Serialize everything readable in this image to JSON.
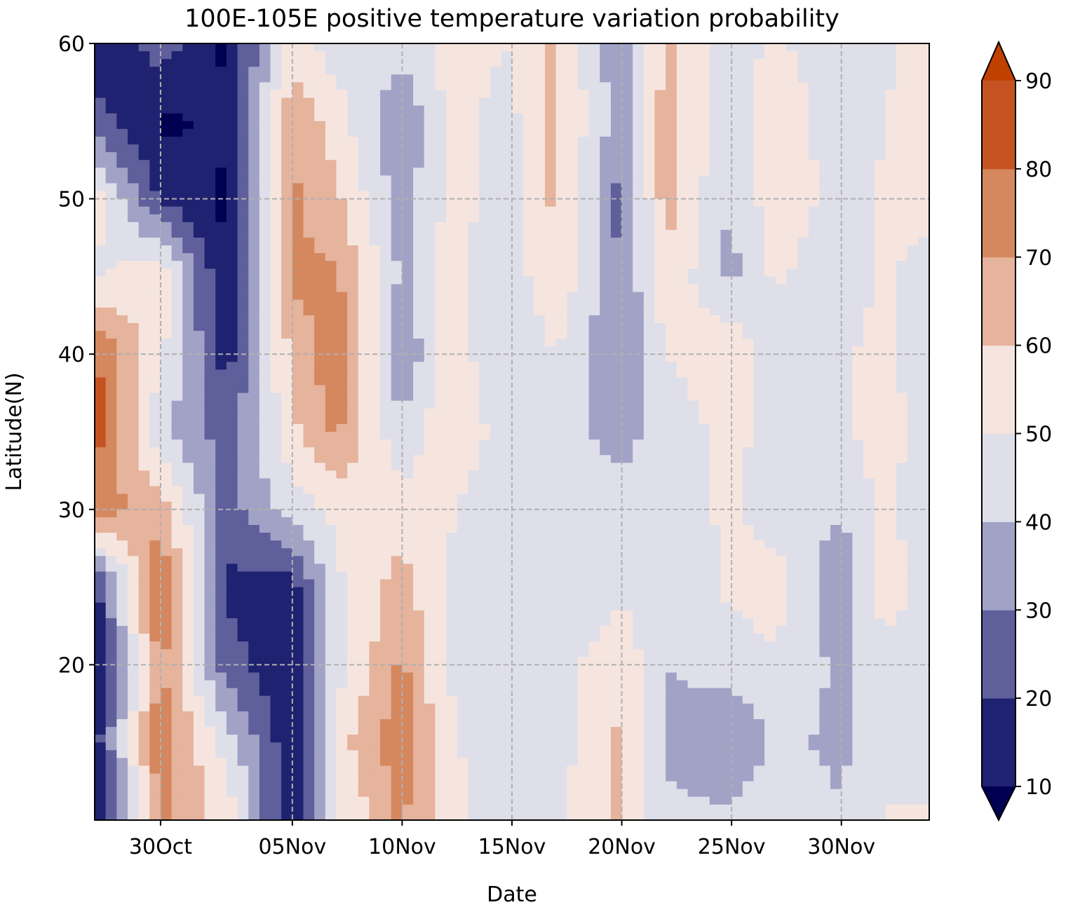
{
  "chart_data": {
    "type": "heatmap",
    "subtype": "filled-contour",
    "title": "100E-105E positive temperature variation probability",
    "xlabel": "Date",
    "ylabel": "Latitude(N)",
    "x_range": [
      "2020-10-27",
      "2020-12-04"
    ],
    "x_ticks": [
      "30Oct",
      "05Nov",
      "10Nov",
      "15Nov",
      "20Nov",
      "25Nov",
      "30Nov"
    ],
    "x_tick_dates": [
      "2020-10-30",
      "2020-11-05",
      "2020-11-10",
      "2020-11-15",
      "2020-11-20",
      "2020-11-25",
      "2020-11-30"
    ],
    "y_range": [
      10,
      60
    ],
    "y_ticks": [
      20,
      30,
      40,
      50,
      60
    ],
    "grid": true,
    "colorbar": {
      "levels": [
        10,
        20,
        30,
        40,
        50,
        60,
        70,
        80,
        90
      ],
      "tick_labels": [
        "10",
        "20",
        "30",
        "40",
        "50",
        "60",
        "70",
        "80",
        "90"
      ],
      "colors": [
        "#000050",
        "#1f2270",
        "#5e5f9b",
        "#a1a2c6",
        "#dfdfea",
        "#f6e5df",
        "#e6b39c",
        "#d5875e",
        "#c45321",
        "#c04000"
      ],
      "extend": "both"
    },
    "latitudes": [
      60,
      55,
      50,
      45,
      40,
      35,
      30,
      25,
      20,
      15,
      11
    ],
    "dates": [
      "2020-10-27",
      "2020-10-30",
      "2020-11-02",
      "2020-11-05",
      "2020-11-07",
      "2020-11-10",
      "2020-11-12",
      "2020-11-15",
      "2020-11-17",
      "2020-11-20",
      "2020-11-22",
      "2020-11-25",
      "2020-11-27",
      "2020-11-30",
      "2020-12-02",
      "2020-12-04"
    ],
    "values": [
      [
        8,
        25,
        8,
        55,
        45,
        45,
        52,
        50,
        62,
        30,
        62,
        45,
        52,
        42,
        48,
        55
      ],
      [
        25,
        8,
        12,
        68,
        55,
        30,
        52,
        48,
        62,
        35,
        65,
        42,
        60,
        42,
        50,
        55
      ],
      [
        55,
        18,
        8,
        72,
        62,
        35,
        52,
        48,
        62,
        25,
        65,
        38,
        58,
        45,
        52,
        55
      ],
      [
        48,
        58,
        8,
        72,
        72,
        38,
        52,
        45,
        58,
        30,
        58,
        38,
        52,
        42,
        52,
        45
      ],
      [
        82,
        52,
        15,
        62,
        78,
        30,
        55,
        42,
        50,
        30,
        50,
        58,
        42,
        48,
        55,
        38
      ],
      [
        85,
        42,
        25,
        58,
        72,
        42,
        58,
        45,
        42,
        38,
        42,
        55,
        42,
        48,
        55,
        45
      ],
      [
        75,
        65,
        25,
        45,
        52,
        55,
        52,
        40,
        45,
        42,
        45,
        52,
        45,
        42,
        52,
        42
      ],
      [
        15,
        82,
        18,
        15,
        48,
        65,
        48,
        42,
        40,
        48,
        40,
        52,
        55,
        30,
        58,
        45
      ],
      [
        12,
        72,
        25,
        10,
        45,
        72,
        50,
        42,
        45,
        58,
        40,
        45,
        48,
        38,
        45,
        40
      ],
      [
        15,
        78,
        45,
        12,
        55,
        78,
        52,
        42,
        45,
        62,
        38,
        30,
        42,
        38,
        48,
        42
      ],
      [
        10,
        72,
        55,
        12,
        50,
        72,
        55,
        40,
        48,
        62,
        42,
        40,
        48,
        40,
        50,
        50
      ]
    ]
  }
}
